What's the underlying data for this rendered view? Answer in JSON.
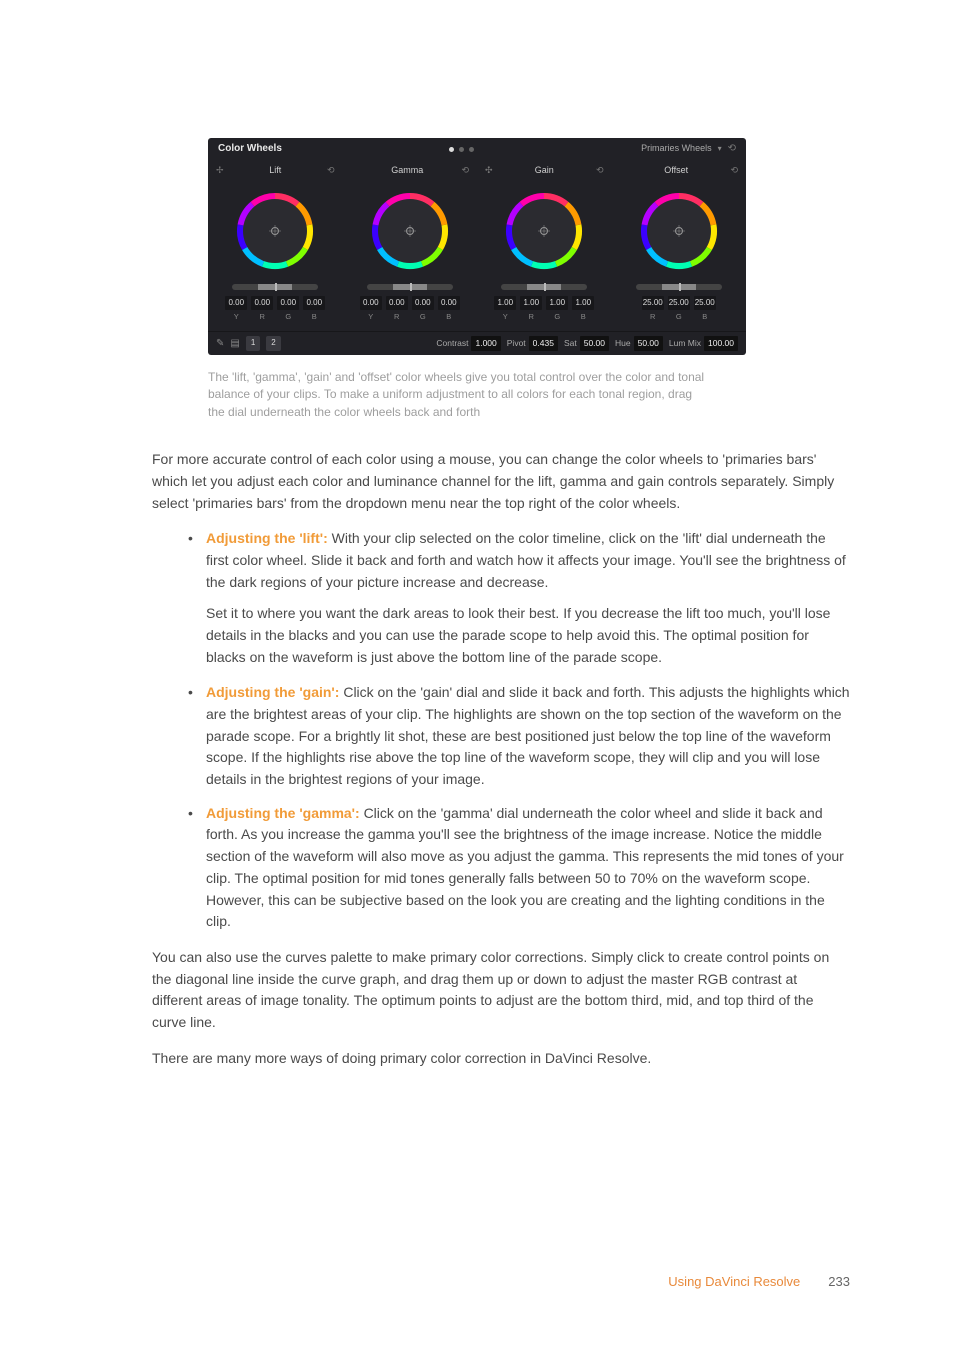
{
  "panel": {
    "title": "Color Wheels",
    "dropdown_label": "Primaries Wheels",
    "wheels": [
      {
        "title": "Lift",
        "left_icon": "✢",
        "channels": [
          "Y",
          "R",
          "G",
          "B"
        ],
        "values": [
          "0.00",
          "0.00",
          "0.00",
          "0.00"
        ]
      },
      {
        "title": "Gamma",
        "left_icon": "",
        "channels": [
          "Y",
          "R",
          "G",
          "B"
        ],
        "values": [
          "0.00",
          "0.00",
          "0.00",
          "0.00"
        ]
      },
      {
        "title": "Gain",
        "left_icon": "✣",
        "channels": [
          "Y",
          "R",
          "G",
          "B"
        ],
        "values": [
          "1.00",
          "1.00",
          "1.00",
          "1.00"
        ]
      },
      {
        "title": "Offset",
        "left_icon": "",
        "channels": [
          "R",
          "G",
          "B"
        ],
        "values": [
          "25.00",
          "25.00",
          "25.00"
        ]
      }
    ],
    "wheel_ring_colors": [
      "#ff2e63",
      "#ff9a00",
      "#ffe600",
      "#7fff00",
      "#00ffb3",
      "#00bfff",
      "#3b00ff",
      "#b400ff",
      "#ff00aa"
    ],
    "wheel_inner_bg": "#2b2b30",
    "footer": {
      "nodes": [
        "1",
        "2"
      ],
      "params": [
        {
          "label": "Contrast",
          "value": "1.000"
        },
        {
          "label": "Pivot",
          "value": "0.435"
        },
        {
          "label": "Sat",
          "value": "50.00"
        },
        {
          "label": "Hue",
          "value": "50.00"
        },
        {
          "label": "Lum Mix",
          "value": "100.00"
        }
      ]
    }
  },
  "caption": "The 'lift, 'gamma', 'gain' and 'offset' color wheels give you total control over the color and tonal balance of your clips. To make a uniform adjustment to all colors for each tonal region, drag the dial underneath the color wheels back and forth",
  "intro": "For more accurate control of each color using a mouse, you can change the color wheels to 'primaries bars' which let you adjust each color and luminance channel for the lift, gamma and gain controls separately. Simply select 'primaries bars' from the dropdown menu near the top right of the color wheels.",
  "items": [
    {
      "title": "Adjusting the 'lift':",
      "body": "With your clip selected on the color timeline, click on the 'lift' dial underneath the first color wheel. Slide it back and forth and watch how it affects your image. You'll see the brightness of the dark regions of your picture increase and decrease.",
      "sub": "Set it to where you want the dark areas to look their best. If you decrease the lift too much, you'll lose details in the blacks and you can use the parade scope to help avoid this. The optimal position for blacks on the waveform is just above the bottom line of the parade scope."
    },
    {
      "title": "Adjusting the 'gain':",
      "body": "Click on the 'gain' dial and slide it back and forth. This adjusts the highlights which are the brightest areas of your clip. The highlights are shown on the top section of the waveform on the parade scope. For a brightly lit shot, these are best positioned just below the top line of the waveform scope. If the highlights rise above the top line of the waveform scope, they will clip and you will lose details in the brightest regions of your image."
    },
    {
      "title": "Adjusting the 'gamma':",
      "body": "Click on the 'gamma' dial underneath the color wheel and slide it back and forth. As you increase the gamma you'll see the brightness of the image increase. Notice the middle section of the waveform will also move as you adjust the gamma. This represents the mid tones of your clip. The optimal position for mid tones generally falls between 50 to 70% on the waveform scope. However, this can be subjective based on the look you are creating and the lighting conditions in the clip."
    }
  ],
  "outro1": "You can also use the curves palette to make primary color corrections. Simply click to create control points on the diagonal line inside the curve graph, and drag them up or down to adjust the master RGB contrast at different areas of image tonality. The optimum points to adjust are the bottom third, mid, and top third of the curve line.",
  "outro2": "There are many more ways of doing primary color correction in DaVinci Resolve.",
  "footer": {
    "section": "Using DaVinci Resolve",
    "page": "233"
  },
  "colors": {
    "accent": "#f19b38",
    "caption": "#9e9e9e",
    "text": "#4a4a4a",
    "footer_accent": "#e8893a"
  }
}
